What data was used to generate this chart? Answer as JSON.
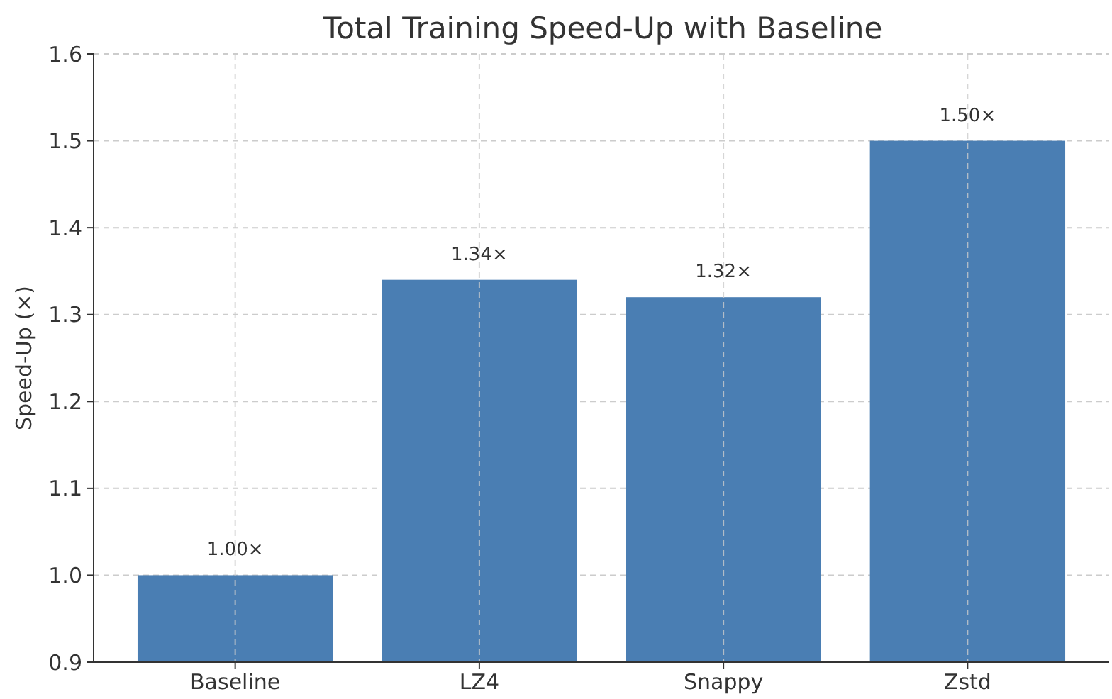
{
  "chart_data": {
    "type": "bar",
    "title": "Total Training Speed-Up with Baseline",
    "ylabel": "Speed-Up (×)",
    "categories": [
      "Baseline",
      "LZ4",
      "Snappy",
      "Zstd"
    ],
    "values": [
      1.0,
      1.34,
      1.32,
      1.5
    ],
    "value_labels": [
      "1.00×",
      "1.34×",
      "1.32×",
      "1.50×"
    ],
    "color": "#4a7eb3",
    "ylim": [
      0.9,
      1.6
    ],
    "yticks": [
      {
        "value": 0.9,
        "label": "0.9"
      },
      {
        "value": 1.0,
        "label": "1.0"
      },
      {
        "value": 1.1,
        "label": "1.1"
      },
      {
        "value": 1.2,
        "label": "1.2"
      },
      {
        "value": 1.3,
        "label": "1.3"
      },
      {
        "value": 1.4,
        "label": "1.4"
      },
      {
        "value": 1.5,
        "label": "1.5"
      },
      {
        "value": 1.6,
        "label": "1.6"
      }
    ],
    "grid": true
  }
}
